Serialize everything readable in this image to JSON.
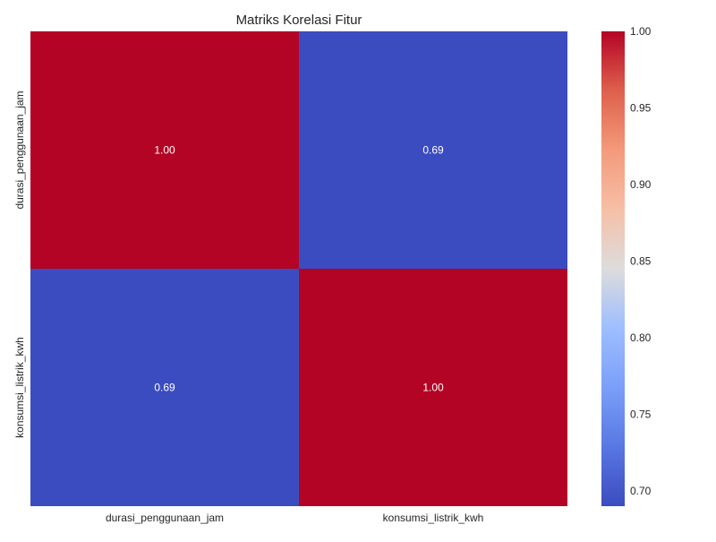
{
  "chart_data": {
    "type": "heatmap",
    "title": "Matriks Korelasi Fitur",
    "x_labels": [
      "durasi_penggunaan_jam",
      "konsumsi_listrik_kwh"
    ],
    "y_labels": [
      "durasi_penggunaan_jam",
      "konsumsi_listrik_kwh"
    ],
    "values": [
      [
        1.0,
        0.69
      ],
      [
        0.69,
        1.0
      ]
    ],
    "annotations": [
      [
        "1.00",
        "0.69"
      ],
      [
        "0.69",
        "1.00"
      ]
    ],
    "colormap": "coolwarm",
    "colorbar": {
      "range": [
        0.69,
        1.0
      ],
      "ticks": [
        0.7,
        0.75,
        0.8,
        0.85,
        0.9,
        0.95,
        1.0
      ],
      "tick_labels": [
        "0.70",
        "0.75",
        "0.80",
        "0.85",
        "0.90",
        "0.95",
        "1.00"
      ]
    },
    "colors": {
      "low": "#3b4cc0",
      "high": "#b40426",
      "annotation_text": "#ffffff"
    }
  }
}
